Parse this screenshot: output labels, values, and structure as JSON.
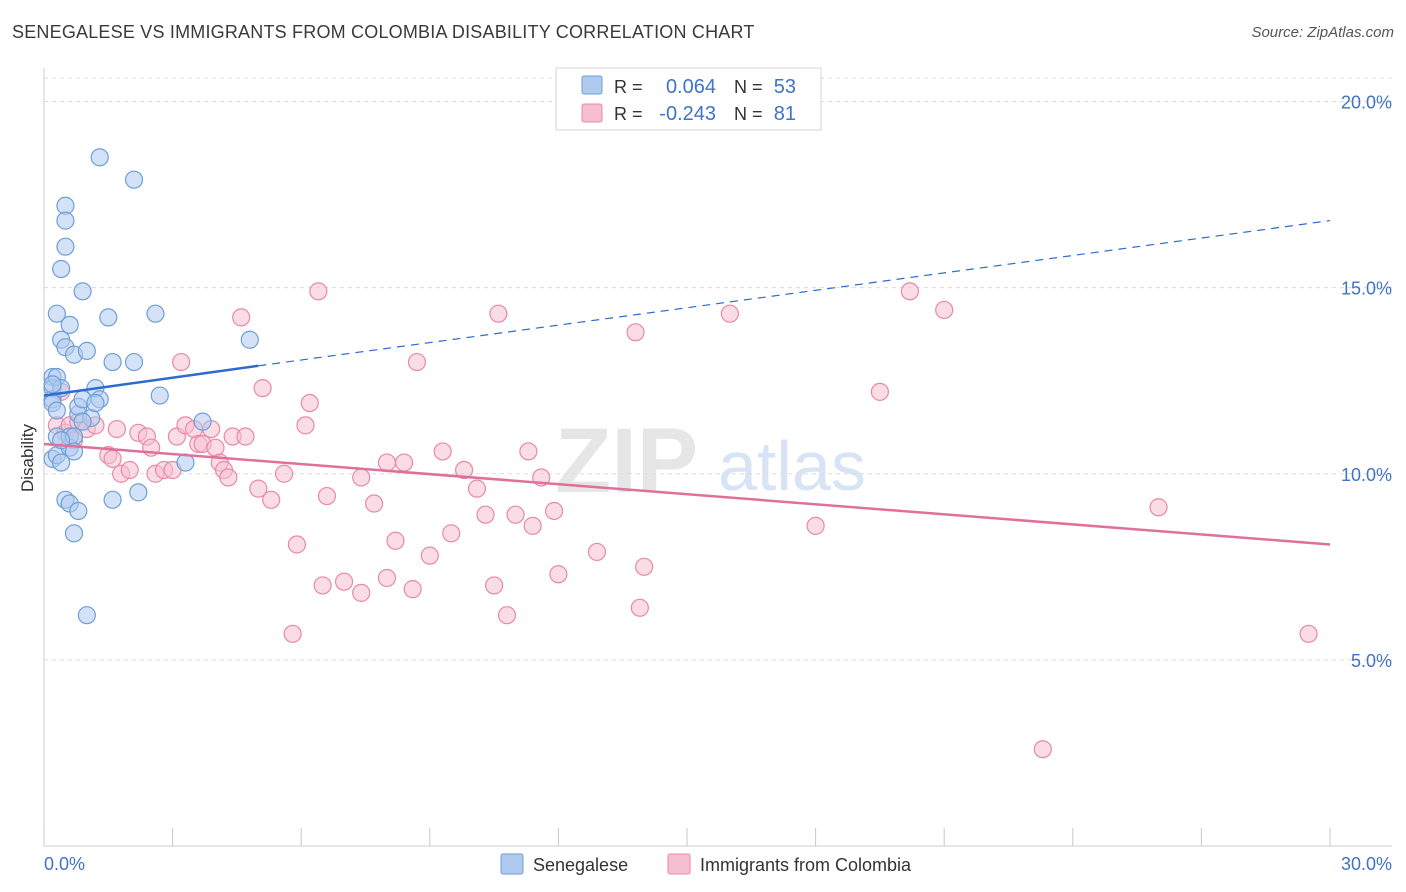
{
  "header": {
    "title": "SENEGALESE VS IMMIGRANTS FROM COLOMBIA DISABILITY CORRELATION CHART",
    "source": "Source: ZipAtlas.com"
  },
  "watermark": {
    "zip": "ZIP",
    "atlas": "atlas"
  },
  "colors": {
    "blue_fill": "#aecbef",
    "blue_stroke": "#6f9fd8",
    "blue_line": "#2b6ccc",
    "pink_fill": "#f6bfd0",
    "pink_stroke": "#e889a8",
    "pink_line": "#e0709a",
    "axis_text": "#3f73c9",
    "grid": "#dcdcdc"
  },
  "legend_top": {
    "rows": [
      {
        "r_label": "R =",
        "r_value": "0.064",
        "n_label": "N =",
        "n_value": "53"
      },
      {
        "r_label": "R =",
        "r_value": "-0.243",
        "n_label": "N =",
        "n_value": "81"
      }
    ]
  },
  "chart_data": {
    "type": "scatter",
    "title": "SENEGALESE VS IMMIGRANTS FROM COLOMBIA DISABILITY CORRELATION CHART",
    "xlabel": "",
    "ylabel": "Disability",
    "xlim": [
      0,
      30
    ],
    "ylim": [
      0,
      20.9
    ],
    "x_tick_labels": [
      "0.0%",
      "30.0%"
    ],
    "y_ticks": [
      5,
      10,
      15,
      20
    ],
    "y_tick_labels": [
      "5.0%",
      "10.0%",
      "15.0%",
      "20.0%"
    ],
    "grid": "horizontal dashed",
    "legend_position": "bottom-center",
    "series": [
      {
        "name": "Senegalese",
        "R": 0.064,
        "N": 53,
        "trend": {
          "x": [
            0.0,
            5.0
          ],
          "y": [
            12.1,
            12.9
          ],
          "extended_x": [
            5.0,
            30.0
          ],
          "extended_y": [
            12.9,
            16.8
          ]
        },
        "points": [
          [
            0.2,
            12.6
          ],
          [
            0.2,
            12.3
          ],
          [
            0.2,
            12.0
          ],
          [
            0.2,
            11.9
          ],
          [
            0.2,
            10.4
          ],
          [
            0.3,
            12.6
          ],
          [
            0.3,
            11.7
          ],
          [
            0.3,
            11.0
          ],
          [
            0.3,
            10.5
          ],
          [
            0.3,
            14.3
          ],
          [
            0.4,
            13.6
          ],
          [
            0.4,
            12.3
          ],
          [
            0.4,
            10.3
          ],
          [
            0.4,
            15.5
          ],
          [
            0.5,
            13.4
          ],
          [
            0.5,
            17.2
          ],
          [
            0.5,
            16.8
          ],
          [
            0.5,
            16.1
          ],
          [
            0.5,
            9.3
          ],
          [
            0.6,
            14.0
          ],
          [
            0.6,
            10.7
          ],
          [
            0.6,
            11.0
          ],
          [
            0.6,
            9.2
          ],
          [
            0.7,
            13.2
          ],
          [
            0.7,
            11.0
          ],
          [
            0.7,
            10.6
          ],
          [
            0.7,
            8.4
          ],
          [
            0.8,
            11.6
          ],
          [
            0.8,
            11.8
          ],
          [
            0.8,
            9.0
          ],
          [
            0.9,
            14.9
          ],
          [
            0.9,
            12.0
          ],
          [
            1.0,
            13.3
          ],
          [
            1.0,
            6.2
          ],
          [
            1.1,
            11.5
          ],
          [
            1.2,
            12.3
          ],
          [
            1.3,
            12.0
          ],
          [
            1.5,
            14.2
          ],
          [
            1.6,
            9.3
          ],
          [
            1.6,
            13.0
          ],
          [
            1.3,
            18.5
          ],
          [
            2.1,
            17.9
          ],
          [
            2.1,
            13.0
          ],
          [
            2.2,
            9.5
          ],
          [
            2.6,
            14.3
          ],
          [
            2.7,
            12.1
          ],
          [
            3.3,
            10.3
          ],
          [
            3.7,
            11.4
          ],
          [
            4.8,
            13.6
          ],
          [
            0.2,
            12.4
          ],
          [
            0.4,
            10.9
          ],
          [
            0.9,
            11.4
          ],
          [
            1.2,
            11.9
          ]
        ]
      },
      {
        "name": "Immigrants from Colombia",
        "R": -0.243,
        "N": 81,
        "trend": {
          "x": [
            0.0,
            30.0
          ],
          "y": [
            10.8,
            8.1
          ]
        },
        "points": [
          [
            0.3,
            11.3
          ],
          [
            0.4,
            12.2
          ],
          [
            0.5,
            11.1
          ],
          [
            0.6,
            11.3
          ],
          [
            0.8,
            11.4
          ],
          [
            1.0,
            11.2
          ],
          [
            1.2,
            11.3
          ],
          [
            1.5,
            10.5
          ],
          [
            1.7,
            11.2
          ],
          [
            1.8,
            10.0
          ],
          [
            2.0,
            10.1
          ],
          [
            2.2,
            11.1
          ],
          [
            2.4,
            11.0
          ],
          [
            2.5,
            10.7
          ],
          [
            2.6,
            10.0
          ],
          [
            2.8,
            10.1
          ],
          [
            3.0,
            10.1
          ],
          [
            3.1,
            11.0
          ],
          [
            3.2,
            13.0
          ],
          [
            3.3,
            11.3
          ],
          [
            3.5,
            11.2
          ],
          [
            3.6,
            10.8
          ],
          [
            3.7,
            10.8
          ],
          [
            3.9,
            11.2
          ],
          [
            4.0,
            10.7
          ],
          [
            4.1,
            10.3
          ],
          [
            4.2,
            10.1
          ],
          [
            4.3,
            9.9
          ],
          [
            4.4,
            11.0
          ],
          [
            4.6,
            14.2
          ],
          [
            4.7,
            11.0
          ],
          [
            5.0,
            9.6
          ],
          [
            5.1,
            12.3
          ],
          [
            5.3,
            9.3
          ],
          [
            5.6,
            10.0
          ],
          [
            5.8,
            5.7
          ],
          [
            5.9,
            8.1
          ],
          [
            6.1,
            11.3
          ],
          [
            6.2,
            11.9
          ],
          [
            6.4,
            14.9
          ],
          [
            6.5,
            7.0
          ],
          [
            6.6,
            9.4
          ],
          [
            7.0,
            7.1
          ],
          [
            7.4,
            6.8
          ],
          [
            7.4,
            9.9
          ],
          [
            7.7,
            9.2
          ],
          [
            8.0,
            7.2
          ],
          [
            8.0,
            10.3
          ],
          [
            8.2,
            8.2
          ],
          [
            8.4,
            10.3
          ],
          [
            8.6,
            6.9
          ],
          [
            8.7,
            13.0
          ],
          [
            9.0,
            7.8
          ],
          [
            9.3,
            10.6
          ],
          [
            9.5,
            8.4
          ],
          [
            9.8,
            10.1
          ],
          [
            10.1,
            9.6
          ],
          [
            10.3,
            8.9
          ],
          [
            10.5,
            7.0
          ],
          [
            10.6,
            14.3
          ],
          [
            10.8,
            6.2
          ],
          [
            11.0,
            8.9
          ],
          [
            11.3,
            10.6
          ],
          [
            11.4,
            8.6
          ],
          [
            11.6,
            9.9
          ],
          [
            11.9,
            9.0
          ],
          [
            12.0,
            7.3
          ],
          [
            12.9,
            7.9
          ],
          [
            13.8,
            13.8
          ],
          [
            13.9,
            6.4
          ],
          [
            14.0,
            7.5
          ],
          [
            16.0,
            14.3
          ],
          [
            18.0,
            8.6
          ],
          [
            19.5,
            12.2
          ],
          [
            20.2,
            14.9
          ],
          [
            21.0,
            14.4
          ],
          [
            23.3,
            2.6
          ],
          [
            26.0,
            9.1
          ],
          [
            29.5,
            5.7
          ],
          [
            0.7,
            10.9
          ],
          [
            1.6,
            10.4
          ]
        ]
      }
    ]
  },
  "bottom_legend": {
    "items": [
      {
        "label": "Senegalese"
      },
      {
        "label": "Immigrants from Colombia"
      }
    ]
  }
}
